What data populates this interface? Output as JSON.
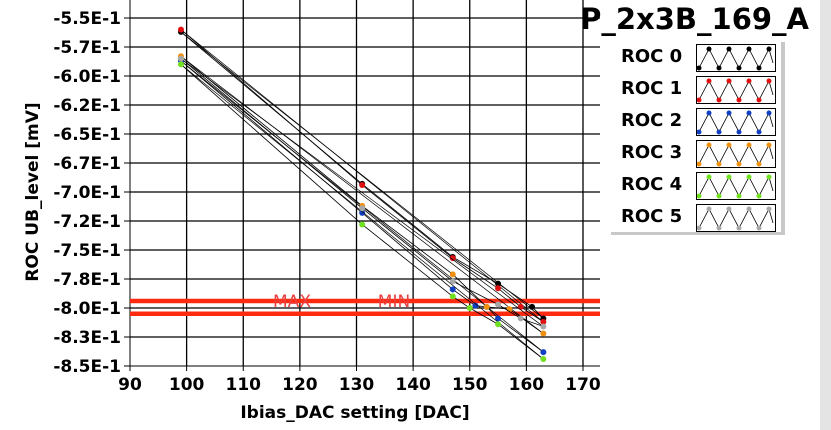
{
  "chart_data": {
    "type": "line",
    "title": "P_2x3B_169_A",
    "xlabel": "Ibias_DAC setting [DAC]",
    "ylabel": "ROC UB_level [mV]",
    "xlim": [
      90,
      170
    ],
    "ylim": [
      -0.85,
      -0.55
    ],
    "x_ticks": [
      "90",
      "100",
      "110",
      "120",
      "130",
      "140",
      "150",
      "160",
      "170"
    ],
    "y_ticks": [
      "-5.5E-1",
      "-5.7E-1",
      "-6.0E-1",
      "-6.2E-1",
      "-6.5E-1",
      "-6.7E-1",
      "-7.0E-1",
      "-7.2E-1",
      "-7.5E-1",
      "-7.8E-1",
      "-8.0E-1",
      "-8.3E-1",
      "-8.5E-1"
    ],
    "grid": true,
    "legend_position": "top-right",
    "series": [
      {
        "name": "ROC 0",
        "color": "#000000",
        "x": [
          99,
          131,
          147,
          155,
          161,
          163
        ],
        "y": [
          -0.562,
          -0.693,
          -0.756,
          -0.779,
          -0.799,
          -0.809
        ]
      },
      {
        "name": "ROC 1",
        "color": "#e01010",
        "x": [
          99,
          131,
          147,
          155,
          159,
          163
        ],
        "y": [
          -0.56,
          -0.694,
          -0.757,
          -0.783,
          -0.799,
          -0.812
        ]
      },
      {
        "name": "ROC 2",
        "color": "#1040c0",
        "x": [
          99,
          131,
          147,
          151,
          153,
          155,
          163
        ],
        "y": [
          -0.587,
          -0.718,
          -0.784,
          -0.798,
          -0.799,
          -0.809,
          -0.838
        ]
      },
      {
        "name": "ROC 3",
        "color": "#f09010",
        "x": [
          99,
          131,
          147,
          153,
          157,
          163
        ],
        "y": [
          -0.583,
          -0.712,
          -0.771,
          -0.799,
          -0.801,
          -0.822
        ]
      },
      {
        "name": "ROC 4",
        "color": "#70e020",
        "x": [
          99,
          131,
          147,
          150,
          155,
          163
        ],
        "y": [
          -0.59,
          -0.728,
          -0.79,
          -0.8,
          -0.814,
          -0.844
        ]
      },
      {
        "name": "ROC 5",
        "color": "#a8a8a8",
        "x": [
          99,
          131,
          147,
          155,
          159,
          163
        ],
        "y": [
          -0.585,
          -0.714,
          -0.777,
          -0.797,
          -0.809,
          -0.816
        ]
      }
    ],
    "reference_lines": [
      {
        "label": "MAX",
        "y": -0.794,
        "color": "#ff2a10"
      },
      {
        "label": "MIN",
        "y": -0.805,
        "color": "#ff2a10"
      }
    ]
  }
}
